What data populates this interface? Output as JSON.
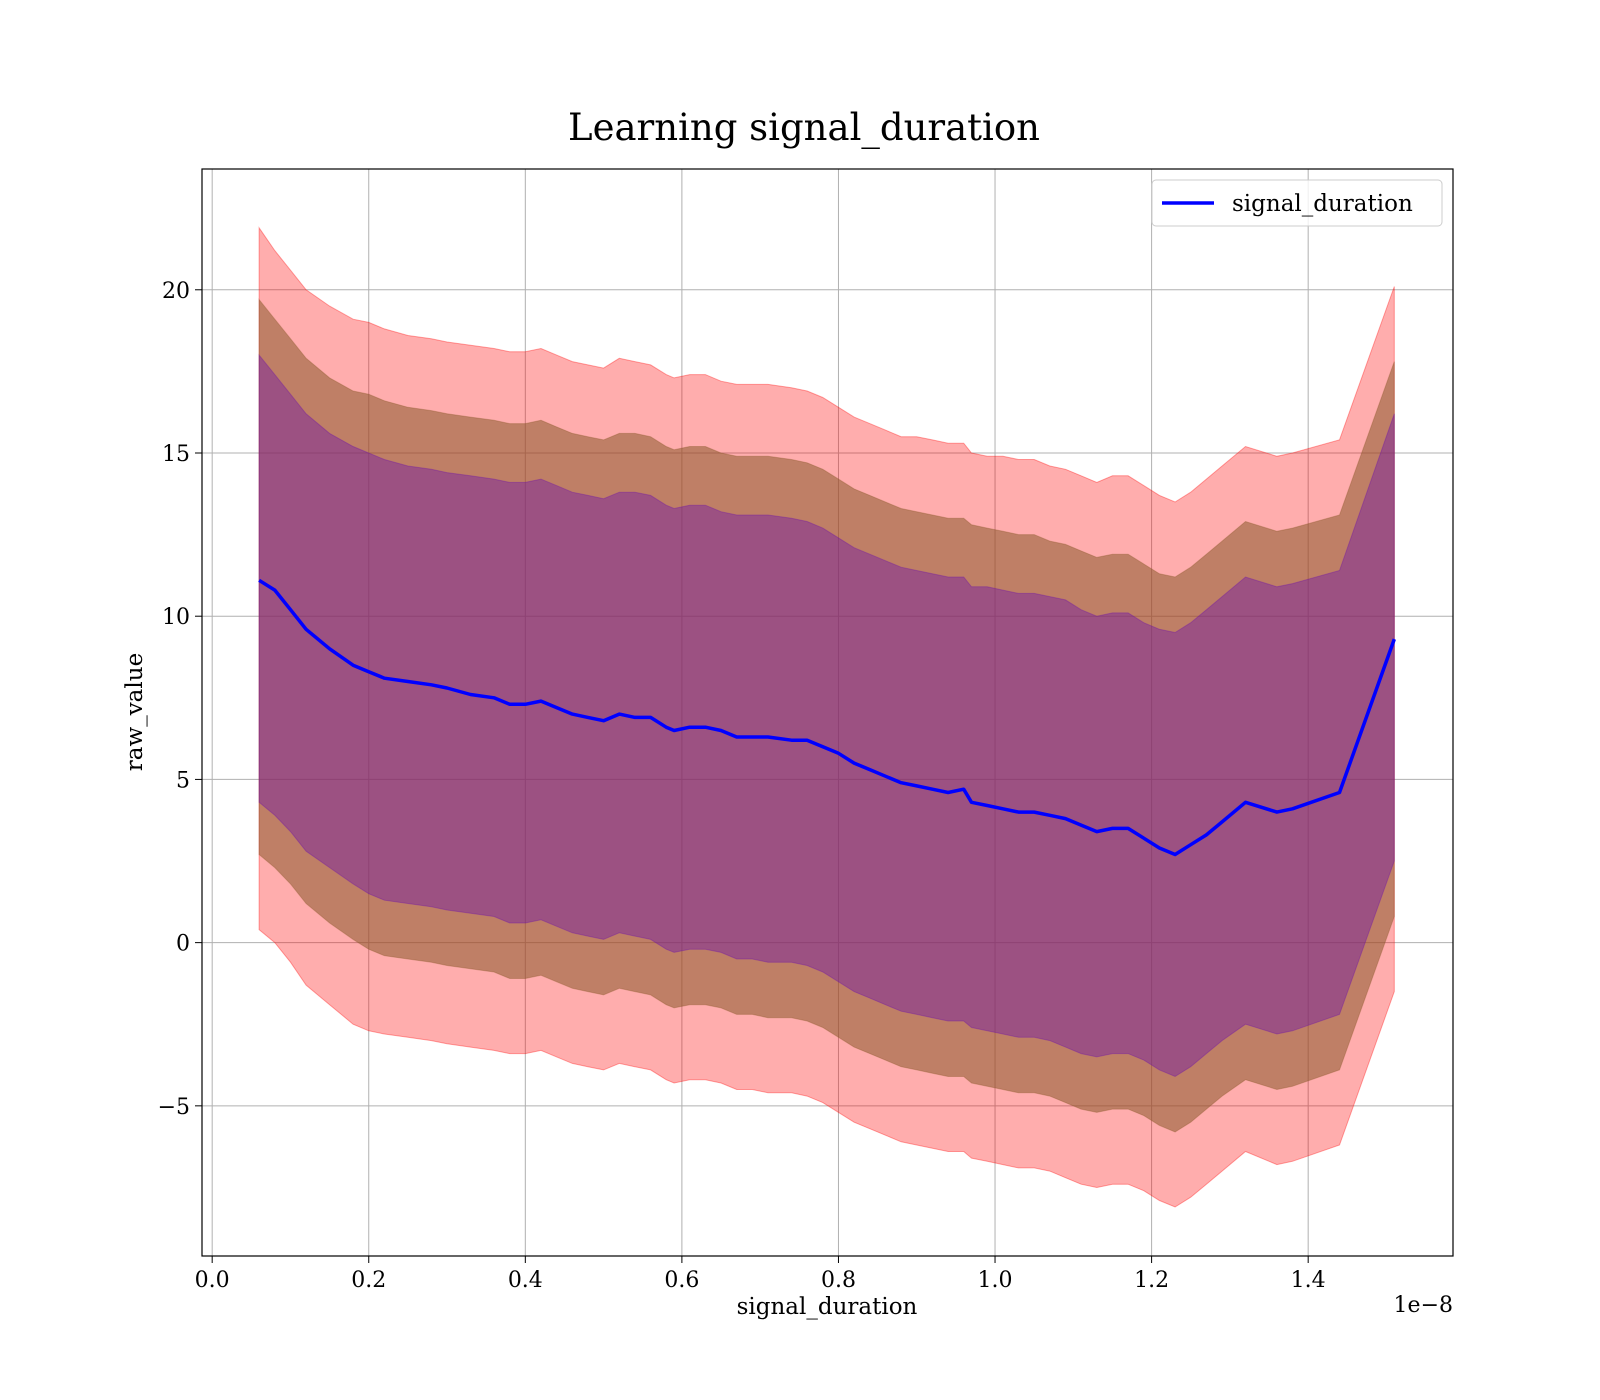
{
  "chart_data": {
    "type": "line",
    "title": "Learning signal_duration",
    "xlabel": "signal_duration",
    "ylabel": "raw_value",
    "x_offset_label": "1e−8",
    "xlim": [
      -0.013,
      1.585
    ],
    "ylim": [
      -9.6,
      23.7
    ],
    "x_ticks": [
      0.0,
      0.2,
      0.4,
      0.6,
      0.8,
      1.0,
      1.2,
      1.4
    ],
    "x_tick_labels": [
      "0.0",
      "0.2",
      "0.4",
      "0.6",
      "0.8",
      "1.0",
      "1.2",
      "1.4"
    ],
    "y_ticks": [
      -5,
      0,
      5,
      10,
      15,
      20
    ],
    "y_tick_labels": [
      "−5",
      "0",
      "5",
      "10",
      "15",
      "20"
    ],
    "grid": true,
    "legend_position": "top-right",
    "colors": {
      "line": "#0000ff",
      "band_outer": "#ff0000",
      "band_middle": "#8b5a2b",
      "band_inner": "#6a0dad"
    },
    "series": [
      {
        "name": "signal_duration",
        "x": [
          0.06,
          0.08,
          0.1,
          0.12,
          0.15,
          0.18,
          0.2,
          0.22,
          0.25,
          0.28,
          0.3,
          0.33,
          0.36,
          0.38,
          0.4,
          0.42,
          0.44,
          0.46,
          0.48,
          0.5,
          0.52,
          0.54,
          0.56,
          0.58,
          0.59,
          0.61,
          0.63,
          0.65,
          0.67,
          0.69,
          0.71,
          0.74,
          0.76,
          0.78,
          0.8,
          0.82,
          0.84,
          0.86,
          0.88,
          0.9,
          0.92,
          0.94,
          0.96,
          0.97,
          0.99,
          1.01,
          1.03,
          1.05,
          1.07,
          1.09,
          1.11,
          1.13,
          1.15,
          1.17,
          1.19,
          1.21,
          1.23,
          1.25,
          1.27,
          1.29,
          1.32,
          1.36,
          1.38,
          1.44,
          1.51
        ],
        "y": [
          11.1,
          10.8,
          10.2,
          9.6,
          9.0,
          8.5,
          8.3,
          8.1,
          8.0,
          7.9,
          7.8,
          7.6,
          7.5,
          7.3,
          7.3,
          7.4,
          7.2,
          7.0,
          6.9,
          6.8,
          7.0,
          6.9,
          6.9,
          6.6,
          6.5,
          6.6,
          6.6,
          6.5,
          6.3,
          6.3,
          6.3,
          6.2,
          6.2,
          6.0,
          5.8,
          5.5,
          5.3,
          5.1,
          4.9,
          4.8,
          4.7,
          4.6,
          4.7,
          4.3,
          4.2,
          4.1,
          4.0,
          4.0,
          3.9,
          3.8,
          3.6,
          3.4,
          3.5,
          3.5,
          3.2,
          2.9,
          2.7,
          3.0,
          3.3,
          3.7,
          4.3,
          4.0,
          4.1,
          4.6,
          9.3
        ]
      }
    ],
    "bands": [
      {
        "role": "outer",
        "upper": [
          21.9,
          21.2,
          20.6,
          20.0,
          19.5,
          19.1,
          19.0,
          18.8,
          18.6,
          18.5,
          18.4,
          18.3,
          18.2,
          18.1,
          18.1,
          18.2,
          18.0,
          17.8,
          17.7,
          17.6,
          17.9,
          17.8,
          17.7,
          17.4,
          17.3,
          17.4,
          17.4,
          17.2,
          17.1,
          17.1,
          17.1,
          17.0,
          16.9,
          16.7,
          16.4,
          16.1,
          15.9,
          15.7,
          15.5,
          15.5,
          15.4,
          15.3,
          15.3,
          15.0,
          14.9,
          14.9,
          14.8,
          14.8,
          14.6,
          14.5,
          14.3,
          14.1,
          14.3,
          14.3,
          14.0,
          13.7,
          13.5,
          13.8,
          14.2,
          14.6,
          15.2,
          14.9,
          15.0,
          15.4,
          20.1
        ],
        "lower": [
          0.4,
          0.0,
          -0.6,
          -1.3,
          -1.9,
          -2.5,
          -2.7,
          -2.8,
          -2.9,
          -3.0,
          -3.1,
          -3.2,
          -3.3,
          -3.4,
          -3.4,
          -3.3,
          -3.5,
          -3.7,
          -3.8,
          -3.9,
          -3.7,
          -3.8,
          -3.9,
          -4.2,
          -4.3,
          -4.2,
          -4.2,
          -4.3,
          -4.5,
          -4.5,
          -4.6,
          -4.6,
          -4.7,
          -4.9,
          -5.2,
          -5.5,
          -5.7,
          -5.9,
          -6.1,
          -6.2,
          -6.3,
          -6.4,
          -6.4,
          -6.6,
          -6.7,
          -6.8,
          -6.9,
          -6.9,
          -7.0,
          -7.2,
          -7.4,
          -7.5,
          -7.4,
          -7.4,
          -7.6,
          -7.9,
          -8.1,
          -7.8,
          -7.4,
          -7.0,
          -6.4,
          -6.8,
          -6.7,
          -6.2,
          -1.5
        ]
      },
      {
        "role": "middle",
        "upper": [
          19.7,
          19.1,
          18.5,
          17.9,
          17.3,
          16.9,
          16.8,
          16.6,
          16.4,
          16.3,
          16.2,
          16.1,
          16.0,
          15.9,
          15.9,
          16.0,
          15.8,
          15.6,
          15.5,
          15.4,
          15.6,
          15.6,
          15.5,
          15.2,
          15.1,
          15.2,
          15.2,
          15.0,
          14.9,
          14.9,
          14.9,
          14.8,
          14.7,
          14.5,
          14.2,
          13.9,
          13.7,
          13.5,
          13.3,
          13.2,
          13.1,
          13.0,
          13.0,
          12.8,
          12.7,
          12.6,
          12.5,
          12.5,
          12.3,
          12.2,
          12.0,
          11.8,
          11.9,
          11.9,
          11.6,
          11.3,
          11.2,
          11.5,
          11.9,
          12.3,
          12.9,
          12.6,
          12.7,
          13.1,
          17.8
        ],
        "lower": [
          2.7,
          2.3,
          1.8,
          1.2,
          0.6,
          0.1,
          -0.2,
          -0.4,
          -0.5,
          -0.6,
          -0.7,
          -0.8,
          -0.9,
          -1.1,
          -1.1,
          -1.0,
          -1.2,
          -1.4,
          -1.5,
          -1.6,
          -1.4,
          -1.5,
          -1.6,
          -1.9,
          -2.0,
          -1.9,
          -1.9,
          -2.0,
          -2.2,
          -2.2,
          -2.3,
          -2.3,
          -2.4,
          -2.6,
          -2.9,
          -3.2,
          -3.4,
          -3.6,
          -3.8,
          -3.9,
          -4.0,
          -4.1,
          -4.1,
          -4.3,
          -4.4,
          -4.5,
          -4.6,
          -4.6,
          -4.7,
          -4.9,
          -5.1,
          -5.2,
          -5.1,
          -5.1,
          -5.3,
          -5.6,
          -5.8,
          -5.5,
          -5.1,
          -4.7,
          -4.2,
          -4.5,
          -4.4,
          -3.9,
          0.8
        ]
      },
      {
        "role": "inner",
        "upper": [
          18.0,
          17.4,
          16.8,
          16.2,
          15.6,
          15.2,
          15.0,
          14.8,
          14.6,
          14.5,
          14.4,
          14.3,
          14.2,
          14.1,
          14.1,
          14.2,
          14.0,
          13.8,
          13.7,
          13.6,
          13.8,
          13.8,
          13.7,
          13.4,
          13.3,
          13.4,
          13.4,
          13.2,
          13.1,
          13.1,
          13.1,
          13.0,
          12.9,
          12.7,
          12.4,
          12.1,
          11.9,
          11.7,
          11.5,
          11.4,
          11.3,
          11.2,
          11.2,
          10.9,
          10.9,
          10.8,
          10.7,
          10.7,
          10.6,
          10.5,
          10.2,
          10.0,
          10.1,
          10.1,
          9.8,
          9.6,
          9.5,
          9.8,
          10.2,
          10.6,
          11.2,
          10.9,
          11.0,
          11.4,
          16.2
        ],
        "lower": [
          4.3,
          3.9,
          3.4,
          2.8,
          2.3,
          1.8,
          1.5,
          1.3,
          1.2,
          1.1,
          1.0,
          0.9,
          0.8,
          0.6,
          0.6,
          0.7,
          0.5,
          0.3,
          0.2,
          0.1,
          0.3,
          0.2,
          0.1,
          -0.2,
          -0.3,
          -0.2,
          -0.2,
          -0.3,
          -0.5,
          -0.5,
          -0.6,
          -0.6,
          -0.7,
          -0.9,
          -1.2,
          -1.5,
          -1.7,
          -1.9,
          -2.1,
          -2.2,
          -2.3,
          -2.4,
          -2.4,
          -2.6,
          -2.7,
          -2.8,
          -2.9,
          -2.9,
          -3.0,
          -3.2,
          -3.4,
          -3.5,
          -3.4,
          -3.4,
          -3.6,
          -3.9,
          -4.1,
          -3.8,
          -3.4,
          -3.0,
          -2.5,
          -2.8,
          -2.7,
          -2.2,
          2.5
        ]
      }
    ]
  }
}
